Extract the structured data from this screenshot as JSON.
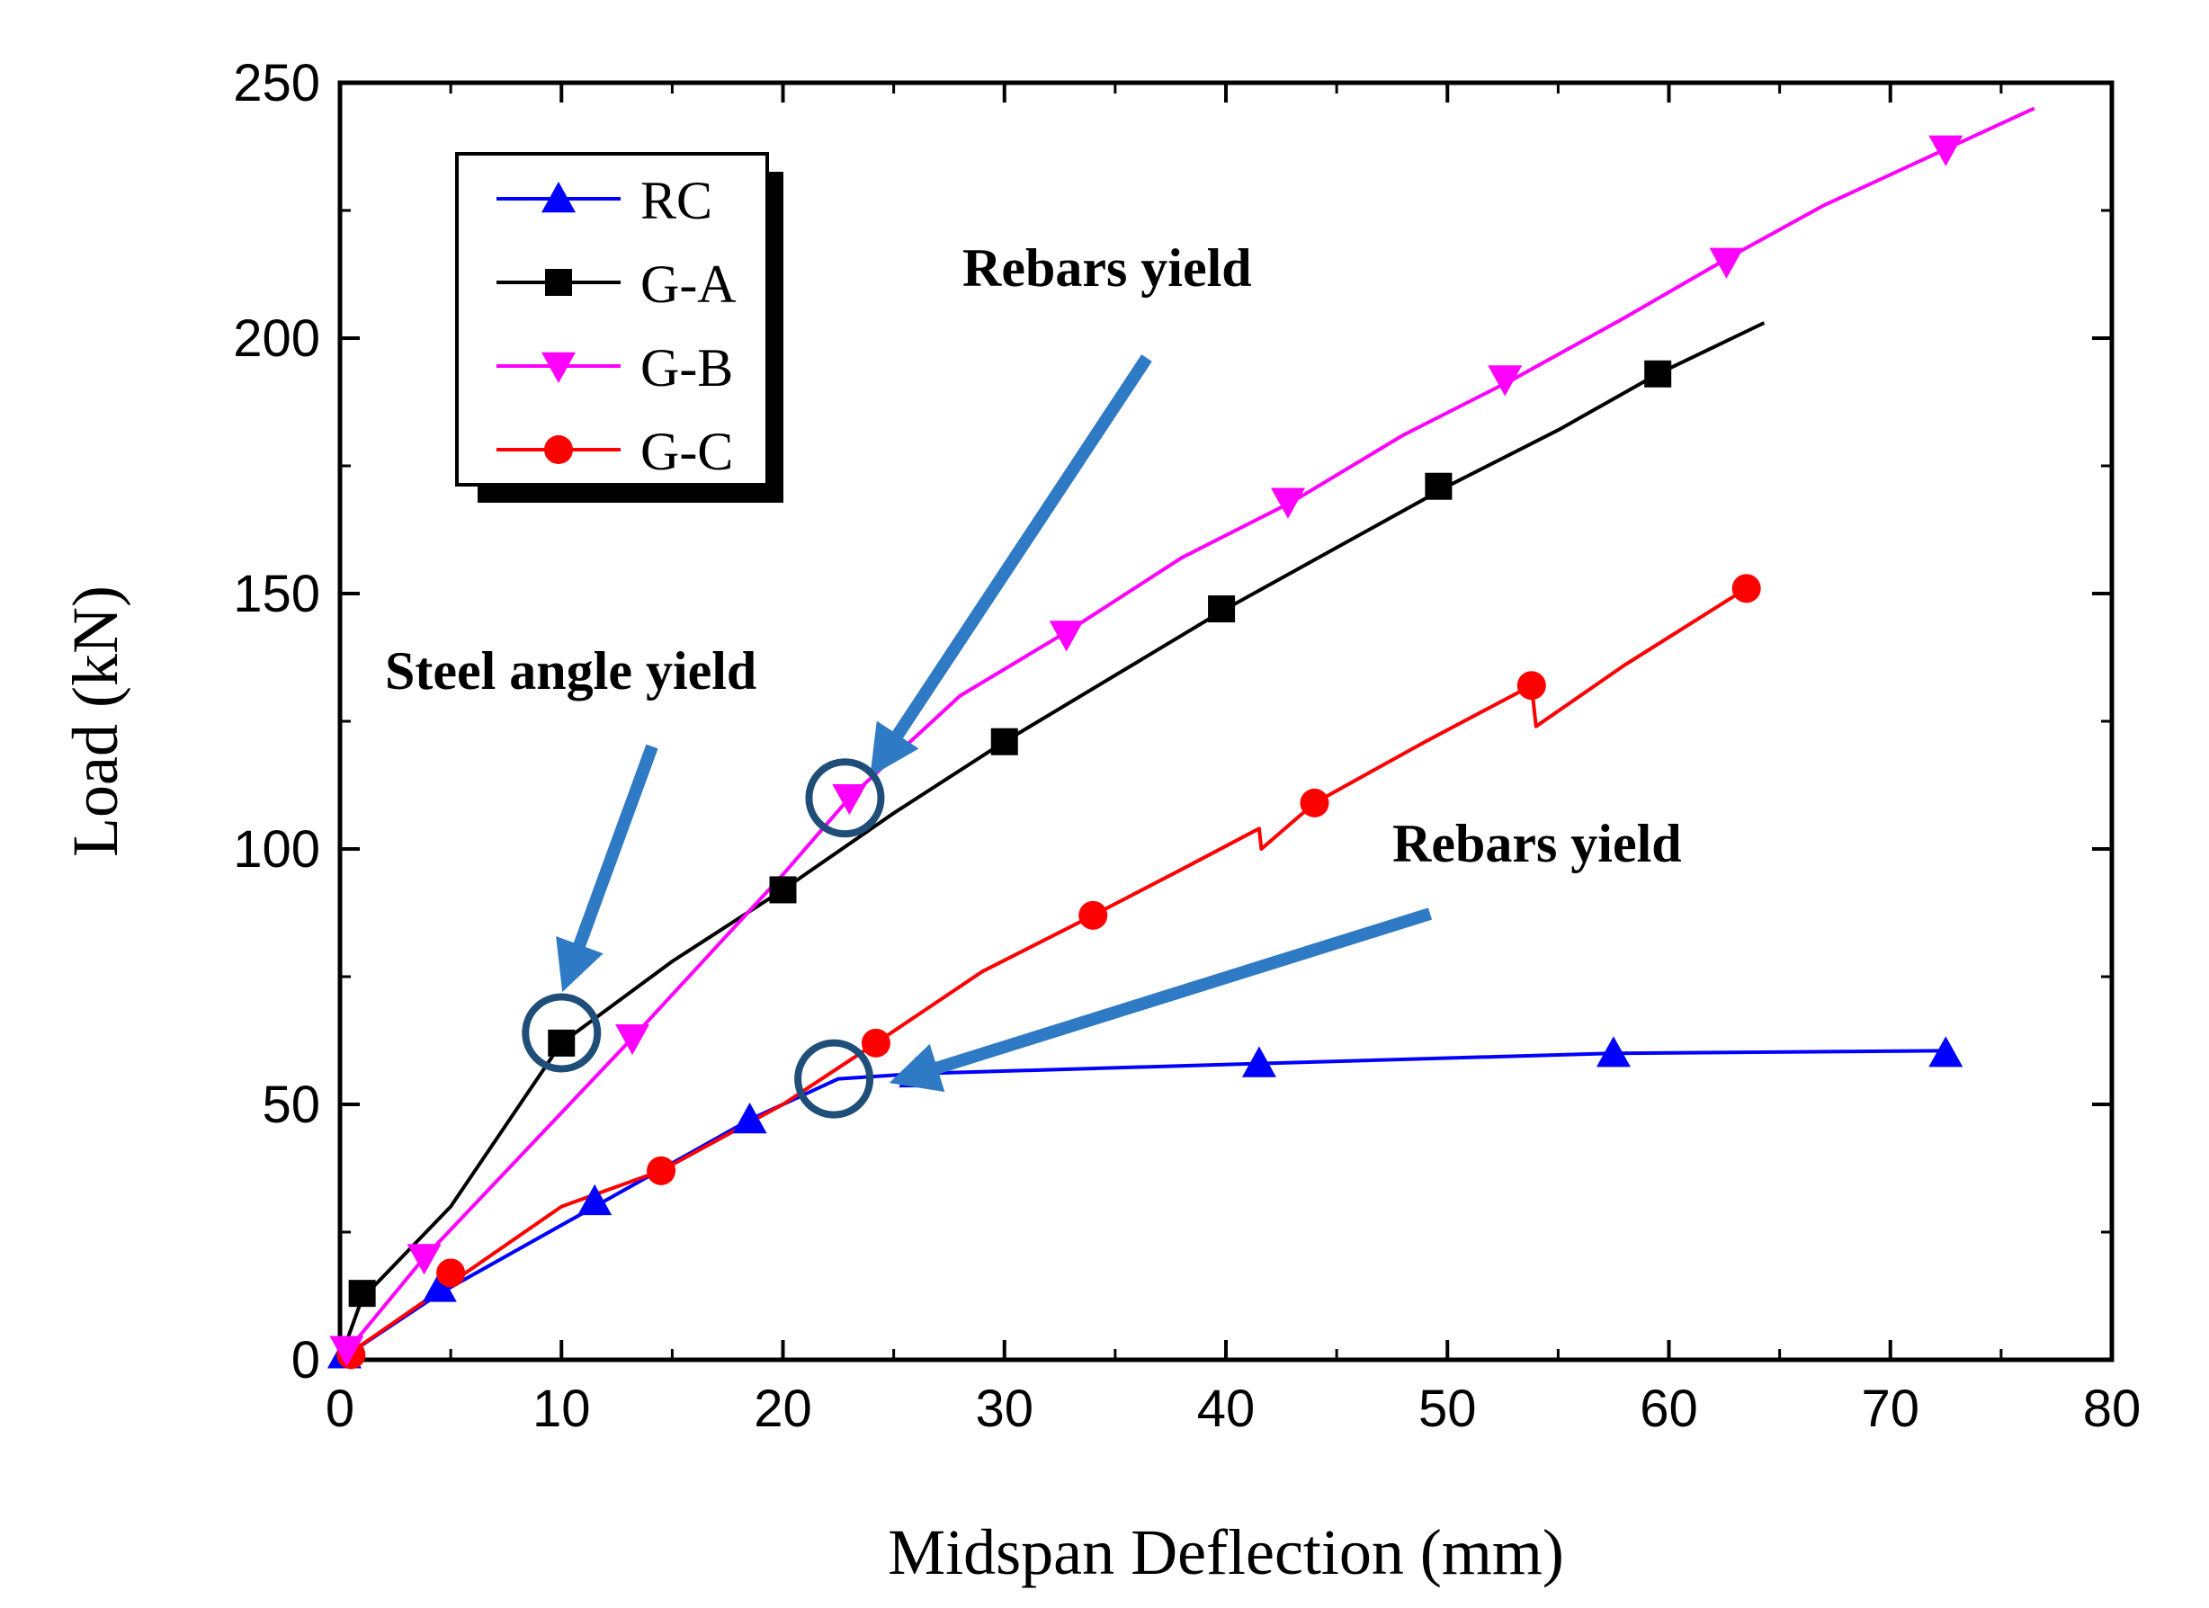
{
  "chart_data": {
    "type": "line",
    "title": "",
    "xlabel": "Midspan Deflection (mm)",
    "ylabel": "Load (kN)",
    "xlim": [
      0,
      80
    ],
    "ylim": [
      0,
      250
    ],
    "xticks": [
      0,
      10,
      20,
      30,
      40,
      50,
      60,
      70,
      80
    ],
    "yticks": [
      0,
      50,
      100,
      150,
      200,
      250
    ],
    "xtick_labels": [
      "0",
      "10",
      "20",
      "30",
      "40",
      "50",
      "60",
      "70",
      "80"
    ],
    "ytick_labels": [
      "0",
      "50",
      "100",
      "150",
      "200",
      "250"
    ],
    "grid": false,
    "legend_position": "top-left",
    "series": [
      {
        "name": "RC",
        "color": "#0000ff",
        "marker": "triangle-up",
        "line": [
          [
            0,
            0
          ],
          [
            4.5,
            13
          ],
          [
            11.5,
            30
          ],
          [
            18.5,
            47
          ],
          [
            22.5,
            55
          ],
          [
            26,
            56
          ],
          [
            41.5,
            58
          ],
          [
            57.5,
            60
          ],
          [
            72.5,
            60.5
          ]
        ],
        "markers": [
          [
            0.2,
            1
          ],
          [
            4.5,
            14
          ],
          [
            11.5,
            31
          ],
          [
            18.5,
            47
          ],
          [
            26,
            56
          ],
          [
            41.5,
            58
          ],
          [
            57.5,
            60
          ],
          [
            72.5,
            60
          ]
        ]
      },
      {
        "name": "G-A",
        "color": "#000000",
        "marker": "square",
        "line": [
          [
            0,
            0
          ],
          [
            1,
            12
          ],
          [
            5,
            30
          ],
          [
            10,
            62
          ],
          [
            15,
            78
          ],
          [
            20,
            92
          ],
          [
            25,
            107
          ],
          [
            30,
            121
          ],
          [
            35,
            134
          ],
          [
            40,
            147
          ],
          [
            45,
            159
          ],
          [
            50,
            171
          ],
          [
            55,
            182
          ],
          [
            59.5,
            193
          ],
          [
            64.3,
            203
          ]
        ],
        "markers": [
          [
            1,
            13
          ],
          [
            10,
            62
          ],
          [
            20,
            92
          ],
          [
            30,
            121
          ],
          [
            39.8,
            147
          ],
          [
            49.6,
            171
          ],
          [
            59.5,
            193
          ]
        ]
      },
      {
        "name": "G-B",
        "color": "#ff00ff",
        "marker": "triangle-down",
        "line": [
          [
            0,
            0
          ],
          [
            3.8,
            20
          ],
          [
            13.2,
            63
          ],
          [
            20,
            95
          ],
          [
            23,
            110
          ],
          [
            28,
            130
          ],
          [
            33,
            143
          ],
          [
            38,
            157
          ],
          [
            43,
            168
          ],
          [
            48,
            181
          ],
          [
            53,
            192
          ],
          [
            58,
            204
          ],
          [
            62.8,
            216
          ],
          [
            67,
            226
          ],
          [
            72.5,
            237
          ],
          [
            76.5,
            245
          ]
        ],
        "markers": [
          [
            0.3,
            2
          ],
          [
            3.8,
            20
          ],
          [
            13.2,
            63
          ],
          [
            23,
            110
          ],
          [
            32.8,
            142
          ],
          [
            42.8,
            168
          ],
          [
            52.6,
            192
          ],
          [
            62.6,
            215
          ],
          [
            72.5,
            237
          ]
        ]
      },
      {
        "name": "G-C",
        "color": "#ff0000",
        "marker": "circle",
        "line": [
          [
            0,
            0
          ],
          [
            5,
            15
          ],
          [
            10,
            30
          ],
          [
            14.5,
            37
          ],
          [
            20,
            50
          ],
          [
            24.2,
            62
          ],
          [
            29,
            76
          ],
          [
            34,
            87
          ],
          [
            38,
            96
          ],
          [
            41.5,
            104
          ],
          [
            41.6,
            100
          ],
          [
            44,
            109
          ],
          [
            49,
            121
          ],
          [
            53.8,
            132
          ],
          [
            54,
            124
          ],
          [
            58,
            136
          ],
          [
            63.5,
            151
          ]
        ],
        "markers": [
          [
            0.5,
            1
          ],
          [
            5,
            17
          ],
          [
            14.5,
            37
          ],
          [
            24.2,
            62
          ],
          [
            34,
            87
          ],
          [
            44,
            109
          ],
          [
            53.8,
            132
          ],
          [
            63.5,
            151
          ]
        ]
      }
    ],
    "annotations": [
      {
        "text": "Rebars yield",
        "arrow_to": [
          22.8,
          110
        ],
        "circle_at": [
          22.8,
          110
        ]
      },
      {
        "text": "Steel angle yield",
        "arrow_to": [
          10,
          64
        ],
        "circle_at": [
          10,
          64
        ]
      },
      {
        "text": "Rebars yield",
        "arrow_to": [
          22.3,
          55
        ],
        "circle_at": [
          22.3,
          55
        ]
      }
    ]
  }
}
